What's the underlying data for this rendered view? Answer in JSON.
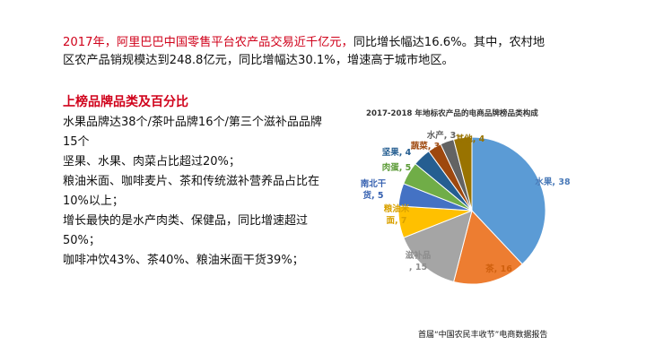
{
  "headline": {
    "highlight": "2017年，阿里巴巴中国零售平台农产品交易近千亿元，",
    "line1_rest": "同比增长幅达16.6%。其中，农村地",
    "line2": "区农产品销规模达到248.8亿元，同比增幅达30.1%，增速高于城市地区。"
  },
  "section": {
    "title": "上榜品牌品类及百分比",
    "bullets": [
      "水果品牌达38个/茶叶品牌16个/第三个滋补品品牌15个",
      "坚果、水果、肉菜占比超过20%；",
      "粮油米面、咖啡麦片、茶和传统滋补营养品占比在10%以上；",
      "增长最快的是水产肉类、保健品，同比增速超过50%；",
      "咖啡冲饮43%、茶40%、粮油米面干货39%；"
    ]
  },
  "chart_data": {
    "type": "pie",
    "title": "2017-2018 年地标农产品的电商品牌榜品类构成",
    "slices": [
      {
        "label": "水果",
        "value": 38,
        "color": "#5b9bd5",
        "text_color": "#4a7ab8"
      },
      {
        "label": "茶",
        "value": 16,
        "color": "#ed7d31",
        "text_color": "#d0600e"
      },
      {
        "label": "滋补品",
        "value": 15,
        "color": "#a5a5a5",
        "text_color": "#8c8c8c"
      },
      {
        "label": "粮油米面",
        "value": 7,
        "color": "#ffc000",
        "text_color": "#d9a100"
      },
      {
        "label": "南北干货",
        "value": 5,
        "color": "#4472c4",
        "text_color": "#3560b0"
      },
      {
        "label": "肉蛋",
        "value": 5,
        "color": "#70ad47",
        "text_color": "#5a9a35"
      },
      {
        "label": "坚果",
        "value": 4,
        "color": "#255e91",
        "text_color": "#255e91"
      },
      {
        "label": "蔬菜",
        "value": 3,
        "color": "#9e480e",
        "text_color": "#9e480e"
      },
      {
        "label": "水产",
        "value": 3,
        "color": "#636363",
        "text_color": "#636363"
      },
      {
        "label": "其他",
        "value": 4,
        "color": "#997300",
        "text_color": "#997300"
      }
    ]
  },
  "footer": "首届“中国农民丰收节”电商数据报告"
}
